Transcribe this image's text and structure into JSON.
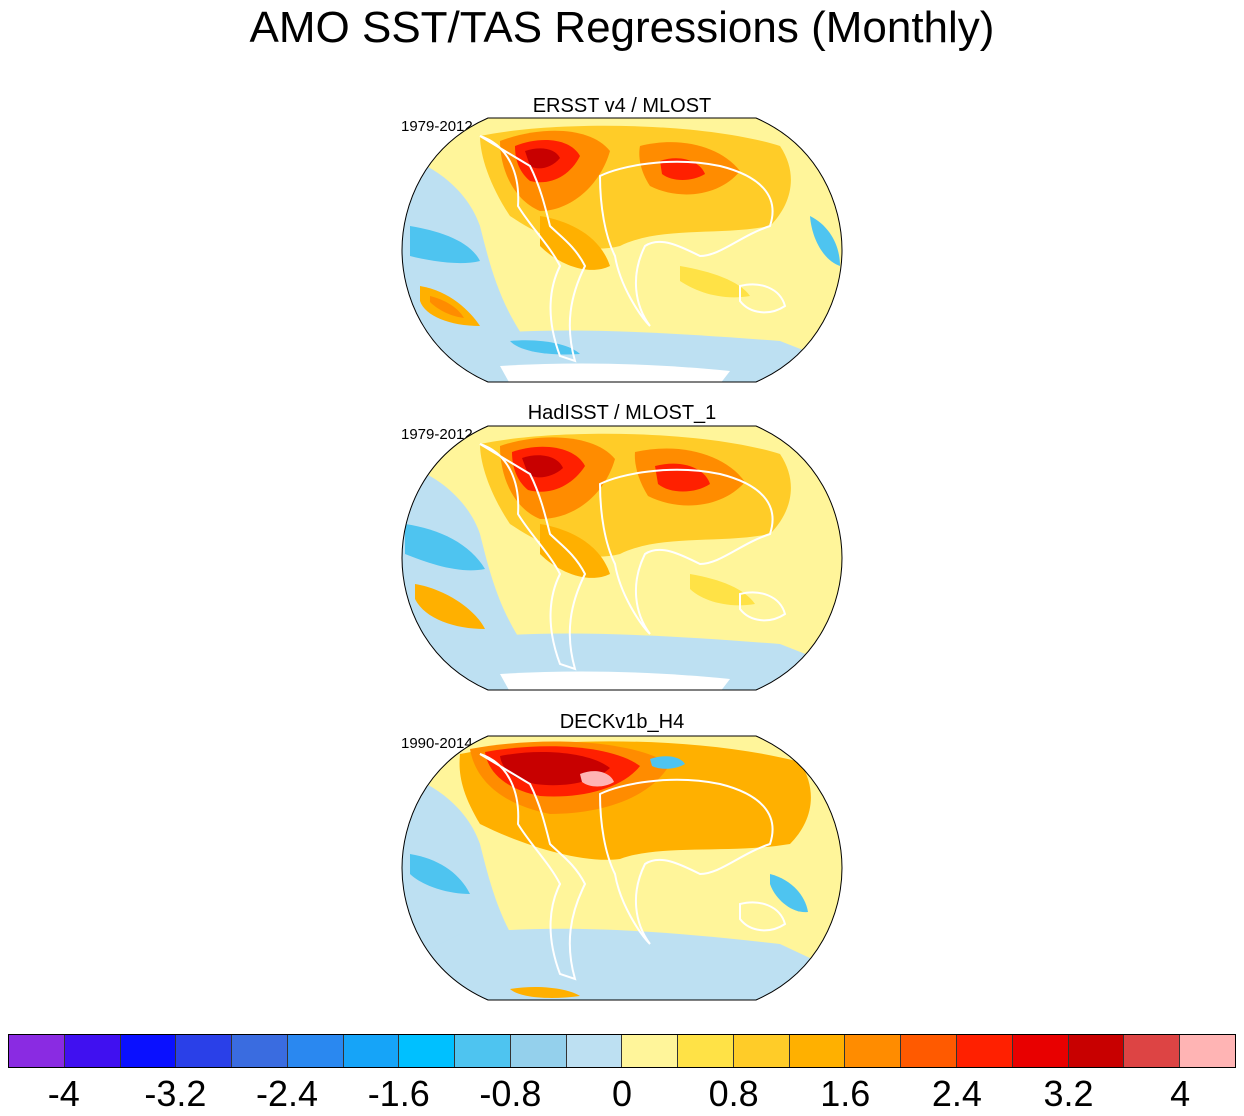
{
  "title": "AMO SST/TAS Regressions (Monthly)",
  "panels": [
    {
      "title": "ERSST v4 / MLOST",
      "period": "1979-2012"
    },
    {
      "title": "HadISST / MLOST_1",
      "period": "1979-2012"
    },
    {
      "title": "DECKv1b_H4",
      "period": "1990-2014"
    }
  ],
  "colorbar": {
    "colors": [
      "#8a2be2",
      "#4010f0",
      "#0a10ff",
      "#2a40e8",
      "#3a6ce0",
      "#2a88f0",
      "#16a4f8",
      "#00c0ff",
      "#4ec4f0",
      "#94d0ec",
      "#bde0f2",
      "#fff59a",
      "#ffe246",
      "#ffcc28",
      "#ffb000",
      "#ff8c00",
      "#ff5a00",
      "#ff2000",
      "#e80000",
      "#c80000",
      "#dd4444",
      "#ffb4b4"
    ],
    "tick_labels": [
      "-4",
      "-3.2",
      "-2.4",
      "-1.6",
      "-0.8",
      "0",
      "0.8",
      "1.6",
      "2.4",
      "3.2",
      "4"
    ]
  },
  "colors": {
    "ocean_cold": "#bde0f2",
    "ocean_blue": "#94d0ec",
    "ocean_deep": "#4ec4f0",
    "warm_light": "#fff59a",
    "warm_yellow": "#ffe246",
    "warm_gold": "#ffcc28",
    "warm_orange": "#ffb000",
    "hot_orange": "#ff8c00",
    "hot_red": "#ff2000",
    "hot_dark": "#c80000"
  }
}
